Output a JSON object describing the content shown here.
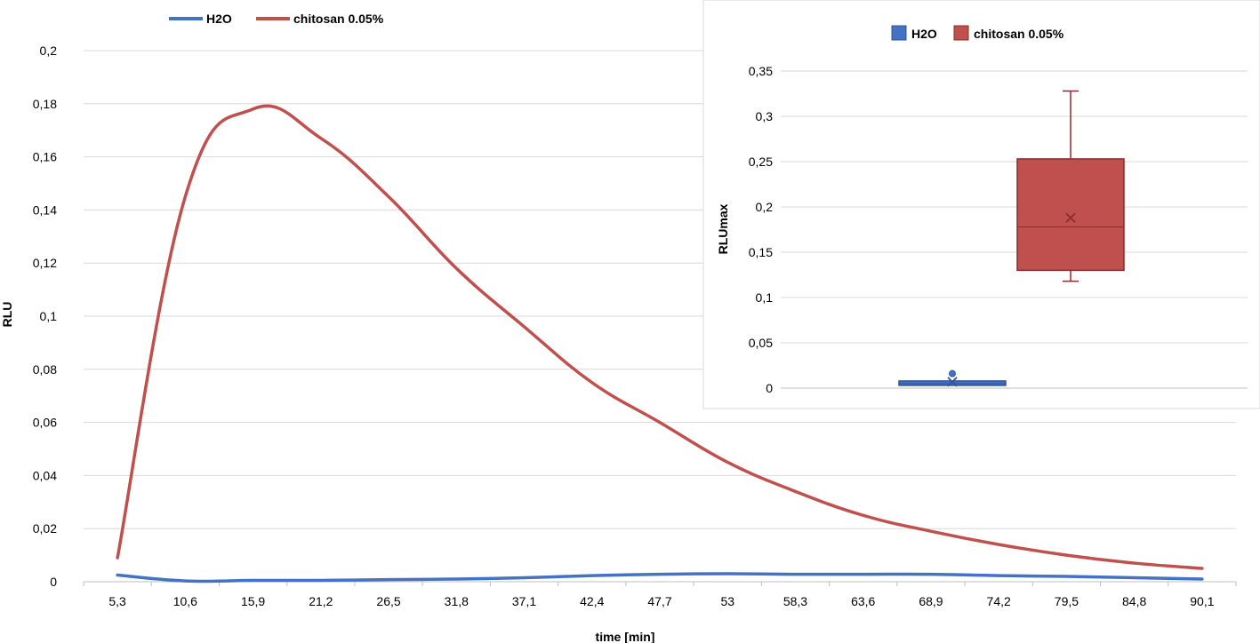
{
  "chart_data": [
    {
      "type": "line",
      "xlabel": "time [min]",
      "ylabel": "RLU",
      "categories": [
        "5,3",
        "10,6",
        "15,9",
        "21,2",
        "26,5",
        "31,8",
        "37,1",
        "42,4",
        "47,7",
        "53",
        "58,3",
        "63,6",
        "68,9",
        "74,2",
        "79,5",
        "84,8",
        "90,1"
      ],
      "y_ticks": [
        "0",
        "0,02",
        "0,04",
        "0,06",
        "0,08",
        "0,1",
        "0,12",
        "0,14",
        "0,16",
        "0,18",
        "0,2"
      ],
      "ylim": [
        0,
        0.2
      ],
      "grid": true,
      "legend_position": "top-left",
      "series": [
        {
          "name": "H2O",
          "color": "#4472C4",
          "values": [
            0.0025,
            0.0003,
            0.0005,
            0.0005,
            0.0008,
            0.001,
            0.0015,
            0.0023,
            0.0028,
            0.003,
            0.0028,
            0.0028,
            0.0028,
            0.0023,
            0.002,
            0.0015,
            0.001
          ]
        },
        {
          "name": "chitosan 0.05%",
          "color": "#C0504D",
          "values": [
            0.009,
            0.145,
            0.178,
            0.167,
            0.145,
            0.118,
            0.096,
            0.075,
            0.06,
            0.045,
            0.034,
            0.025,
            0.019,
            0.014,
            0.01,
            0.007,
            0.005
          ]
        }
      ]
    },
    {
      "type": "box",
      "ylabel": "RLUmax",
      "y_ticks": [
        "0",
        "0,05",
        "0,1",
        "0,15",
        "0,2",
        "0,25",
        "0,3",
        "0,35"
      ],
      "ylim": [
        0,
        0.35
      ],
      "grid": true,
      "legend_position": "top",
      "series": [
        {
          "name": "H2O",
          "color": "#4472C4",
          "min": 0.003,
          "q1": 0.003,
          "median": 0.005,
          "q3": 0.007,
          "max": 0.007,
          "mean": 0.007,
          "outliers": [
            0.016
          ]
        },
        {
          "name": "chitosan 0.05%",
          "color": "#C0504D",
          "min": 0.118,
          "q1": 0.13,
          "median": 0.178,
          "q3": 0.253,
          "max": 0.328,
          "mean": 0.188,
          "outliers": []
        }
      ]
    }
  ]
}
